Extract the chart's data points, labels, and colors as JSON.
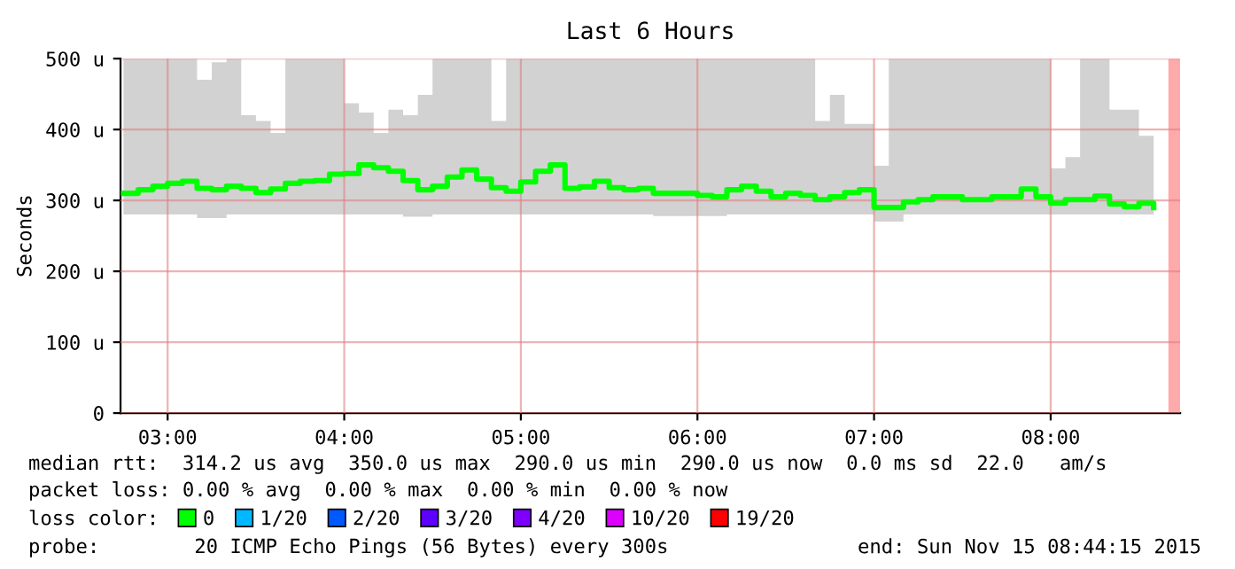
{
  "chart_data": {
    "type": "step",
    "title": "Last 6 Hours",
    "ylabel": "Seconds",
    "x": [
      "2015-11-15T02:45",
      "2015-11-15T02:50",
      "2015-11-15T02:55",
      "2015-11-15T03:00",
      "2015-11-15T03:05",
      "2015-11-15T03:10",
      "2015-11-15T03:15",
      "2015-11-15T03:20",
      "2015-11-15T03:25",
      "2015-11-15T03:30",
      "2015-11-15T03:35",
      "2015-11-15T03:40",
      "2015-11-15T03:45",
      "2015-11-15T03:50",
      "2015-11-15T03:55",
      "2015-11-15T04:00",
      "2015-11-15T04:05",
      "2015-11-15T04:10",
      "2015-11-15T04:15",
      "2015-11-15T04:20",
      "2015-11-15T04:25",
      "2015-11-15T04:30",
      "2015-11-15T04:35",
      "2015-11-15T04:40",
      "2015-11-15T04:45",
      "2015-11-15T04:50",
      "2015-11-15T04:55",
      "2015-11-15T05:00",
      "2015-11-15T05:05",
      "2015-11-15T05:10",
      "2015-11-15T05:15",
      "2015-11-15T05:20",
      "2015-11-15T05:25",
      "2015-11-15T05:30",
      "2015-11-15T05:35",
      "2015-11-15T05:40",
      "2015-11-15T05:45",
      "2015-11-15T05:50",
      "2015-11-15T05:55",
      "2015-11-15T06:00",
      "2015-11-15T06:05",
      "2015-11-15T06:10",
      "2015-11-15T06:15",
      "2015-11-15T06:20",
      "2015-11-15T06:25",
      "2015-11-15T06:30",
      "2015-11-15T06:35",
      "2015-11-15T06:40",
      "2015-11-15T06:45",
      "2015-11-15T06:50",
      "2015-11-15T06:55",
      "2015-11-15T07:00",
      "2015-11-15T07:05",
      "2015-11-15T07:10",
      "2015-11-15T07:15",
      "2015-11-15T07:20",
      "2015-11-15T07:25",
      "2015-11-15T07:30",
      "2015-11-15T07:35",
      "2015-11-15T07:40",
      "2015-11-15T07:45",
      "2015-11-15T07:50",
      "2015-11-15T07:55",
      "2015-11-15T08:00",
      "2015-11-15T08:05",
      "2015-11-15T08:10",
      "2015-11-15T08:15",
      "2015-11-15T08:20",
      "2015-11-15T08:25",
      "2015-11-15T08:30",
      "2015-11-15T08:35"
    ],
    "series": [
      {
        "name": "0",
        "color": "#00ff00",
        "values": [
          310,
          315,
          320,
          324,
          327,
          317,
          315,
          320,
          317,
          311,
          316,
          324,
          327,
          328,
          337,
          338,
          350,
          346,
          341,
          328,
          315,
          320,
          333,
          343,
          330,
          318,
          313,
          326,
          341,
          350,
          317,
          319,
          327,
          318,
          315,
          317,
          310,
          310,
          310,
          307,
          305,
          315,
          320,
          313,
          305,
          310,
          307,
          301,
          305,
          311,
          315,
          290,
          290,
          298,
          301,
          305,
          305,
          301,
          301,
          305,
          305,
          316,
          305,
          296,
          301,
          301,
          306,
          295,
          291,
          296,
          290
        ],
        "lower": [
          280,
          280,
          280,
          280,
          280,
          275,
          275,
          280,
          280,
          280,
          280,
          280,
          280,
          280,
          280,
          280,
          280,
          280,
          280,
          277,
          277,
          280,
          280,
          280,
          280,
          280,
          280,
          280,
          280,
          280,
          280,
          280,
          280,
          280,
          280,
          280,
          278,
          278,
          278,
          278,
          278,
          280,
          280,
          280,
          280,
          280,
          280,
          280,
          280,
          280,
          280,
          270,
          270,
          280,
          280,
          280,
          280,
          280,
          280,
          280,
          280,
          280,
          280,
          280,
          280,
          280,
          280,
          280,
          280,
          280,
          280
        ],
        "upper": [
          500,
          500,
          500,
          500,
          500,
          470,
          495,
          500,
          420,
          412,
          395,
          500,
          500,
          500,
          500,
          437,
          424,
          395,
          428,
          420,
          449,
          500,
          500,
          500,
          500,
          412,
          500,
          500,
          500,
          500,
          500,
          500,
          500,
          500,
          500,
          500,
          500,
          500,
          500,
          500,
          500,
          500,
          500,
          500,
          500,
          500,
          500,
          412,
          449,
          408,
          408,
          349,
          500,
          500,
          500,
          500,
          500,
          500,
          500,
          500,
          500,
          500,
          500,
          345,
          361,
          500,
          500,
          428,
          428,
          391,
          500
        ]
      },
      {
        "name": "1/20",
        "color": "#00b8ff",
        "values": [
          null,
          null,
          null,
          null,
          null,
          null,
          null,
          null,
          null,
          null,
          null,
          null,
          null,
          null,
          null,
          null,
          null,
          null,
          null,
          null,
          null,
          null,
          null,
          null,
          null,
          null,
          null,
          null,
          null,
          null,
          null,
          null,
          null,
          null,
          null,
          null,
          null,
          null,
          null,
          null,
          null,
          null,
          null,
          null,
          null,
          null,
          null,
          null,
          null,
          null,
          null,
          null,
          null,
          null,
          null,
          null,
          null,
          null,
          null,
          null,
          null,
          null,
          null,
          null,
          null,
          null,
          null,
          null,
          null,
          null,
          null
        ]
      },
      {
        "name": "2/20",
        "color": "#0059ff",
        "values": [
          null,
          null,
          null,
          null,
          null,
          null,
          null,
          null,
          null,
          null,
          null,
          null,
          null,
          null,
          null,
          null,
          null,
          null,
          null,
          null,
          null,
          null,
          null,
          null,
          null,
          null,
          null,
          null,
          null,
          null,
          null,
          null,
          null,
          null,
          null,
          null,
          null,
          null,
          null,
          null,
          null,
          null,
          null,
          null,
          null,
          null,
          null,
          null,
          null,
          null,
          null,
          null,
          null,
          null,
          null,
          null,
          null,
          null,
          null,
          null,
          null,
          null,
          null,
          null,
          null,
          null,
          null,
          null,
          null,
          null,
          null
        ]
      },
      {
        "name": "3/20",
        "color": "#5e00ff",
        "values": [
          null,
          null,
          null,
          null,
          null,
          null,
          null,
          null,
          null,
          null,
          null,
          null,
          null,
          null,
          null,
          null,
          null,
          null,
          null,
          null,
          null,
          null,
          null,
          null,
          null,
          null,
          null,
          null,
          null,
          null,
          null,
          null,
          null,
          null,
          null,
          null,
          null,
          null,
          null,
          null,
          null,
          null,
          null,
          null,
          null,
          null,
          null,
          null,
          null,
          null,
          null,
          null,
          null,
          null,
          null,
          null,
          null,
          null,
          null,
          null,
          null,
          null,
          null,
          null,
          null,
          null,
          null,
          null,
          null,
          null,
          null
        ]
      },
      {
        "name": "4/20",
        "color": "#7e00ff",
        "values": [
          null,
          null,
          null,
          null,
          null,
          null,
          null,
          null,
          null,
          null,
          null,
          null,
          null,
          null,
          null,
          null,
          null,
          null,
          null,
          null,
          null,
          null,
          null,
          null,
          null,
          null,
          null,
          null,
          null,
          null,
          null,
          null,
          null,
          null,
          null,
          null,
          null,
          null,
          null,
          null,
          null,
          null,
          null,
          null,
          null,
          null,
          null,
          null,
          null,
          null,
          null,
          null,
          null,
          null,
          null,
          null,
          null,
          null,
          null,
          null,
          null,
          null,
          null,
          null,
          null,
          null,
          null,
          null,
          null,
          null,
          null
        ]
      },
      {
        "name": "10/20",
        "color": "#dd00ff",
        "values": [
          null,
          null,
          null,
          null,
          null,
          null,
          null,
          null,
          null,
          null,
          null,
          null,
          null,
          null,
          null,
          null,
          null,
          null,
          null,
          null,
          null,
          null,
          null,
          null,
          null,
          null,
          null,
          null,
          null,
          null,
          null,
          null,
          null,
          null,
          null,
          null,
          null,
          null,
          null,
          null,
          null,
          null,
          null,
          null,
          null,
          null,
          null,
          null,
          null,
          null,
          null,
          null,
          null,
          null,
          null,
          null,
          null,
          null,
          null,
          null,
          null,
          null,
          null,
          null,
          null,
          null,
          null,
          null,
          null,
          null,
          null
        ]
      },
      {
        "name": "19/20",
        "color": "#ff0000",
        "values": [
          null,
          null,
          null,
          null,
          null,
          null,
          null,
          null,
          null,
          null,
          null,
          null,
          null,
          null,
          null,
          null,
          null,
          null,
          null,
          null,
          null,
          null,
          null,
          null,
          null,
          null,
          null,
          null,
          null,
          null,
          null,
          null,
          null,
          null,
          null,
          null,
          null,
          null,
          null,
          null,
          null,
          null,
          null,
          null,
          null,
          null,
          null,
          null,
          null,
          null,
          null,
          null,
          null,
          null,
          null,
          null,
          null,
          null,
          null,
          null,
          null,
          null,
          null,
          null,
          null,
          null,
          null,
          null,
          null,
          null,
          null
        ]
      }
    ],
    "legend": "bottom",
    "legend_title": "loss color:",
    "xlim": [
      "2015-11-15T02:44",
      "2015-11-15T08:44"
    ],
    "xticks": [
      {
        "value": "2015-11-15T03:00",
        "label": "03:00"
      },
      {
        "value": "2015-11-15T04:00",
        "label": "04:00"
      },
      {
        "value": "2015-11-15T05:00",
        "label": "05:00"
      },
      {
        "value": "2015-11-15T06:00",
        "label": "06:00"
      },
      {
        "value": "2015-11-15T07:00",
        "label": "07:00"
      },
      {
        "value": "2015-11-15T08:00",
        "label": "08:00"
      }
    ],
    "ylim": [
      0,
      500
    ],
    "yticks": [
      0,
      {
        "value": 100,
        "label": "100 u"
      },
      {
        "value": 200,
        "label": "200 u"
      },
      {
        "value": 300,
        "label": "300 u"
      },
      {
        "value": 400,
        "label": "400 u"
      },
      {
        "value": 500,
        "label": "500 u"
      }
    ],
    "grid": true,
    "bands": [
      {
        "axis": "x",
        "from": "2015-11-15T08:40",
        "to": "2015-11-15T08:44",
        "color": "#ffaaaa"
      }
    ],
    "annotations": [
      "median rtt:  314.2 us avg  350.0 us max  290.0 us min  290.0 us now  0.0 ms sd  22.0   am/s",
      "packet loss: 0.00 % avg  0.00 % max  0.00 % min  0.00 % now",
      "probe:        20 ICMP Echo Pings (56 Bytes) every 300s",
      "end: Sun Nov 15 08:44:15 2015"
    ]
  }
}
